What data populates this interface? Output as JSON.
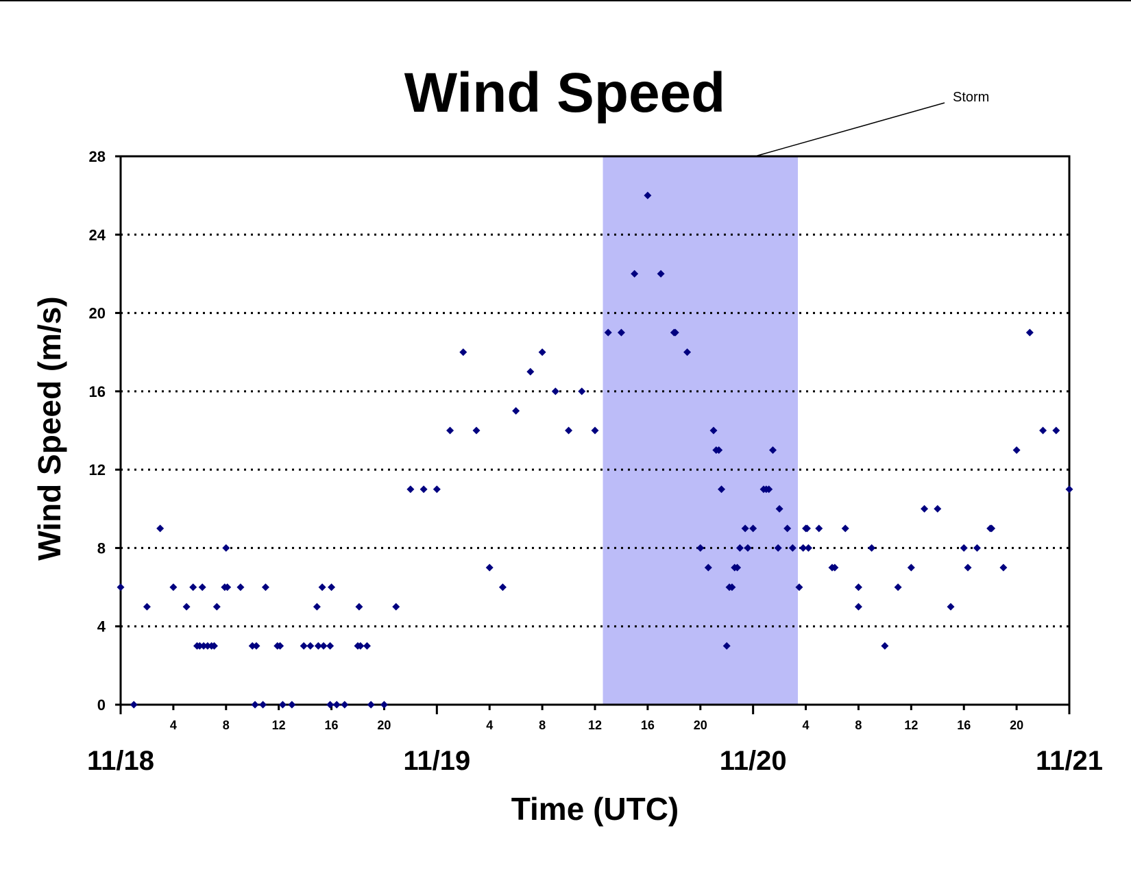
{
  "chart_data": {
    "type": "scatter",
    "title": "Wind Speed",
    "xlabel": "Time (UTC)",
    "ylabel": "Wind Speed (m/s)",
    "x_unit": "hours since 11/18 00 UTC",
    "xlim": [
      0,
      72
    ],
    "ylim": [
      0,
      28
    ],
    "yticks": [
      "0",
      "4",
      "8",
      "12",
      "16",
      "20",
      "24",
      "28"
    ],
    "hour_tick_labels": [
      "4",
      "8",
      "12",
      "16",
      "20"
    ],
    "day_labels": [
      "11/18",
      "11/19",
      "11/20",
      "11/21"
    ],
    "grid": "horizontal dotted",
    "marker_color": "#000080",
    "shading": {
      "label": "Storm",
      "x_start": 36.6,
      "x_end": 51.4,
      "color": "#bcbcf8"
    },
    "series": [
      {
        "points": [
          [
            0,
            6
          ],
          [
            1,
            0
          ],
          [
            2,
            5
          ],
          [
            3,
            9
          ],
          [
            4,
            6
          ],
          [
            5,
            5
          ],
          [
            5.5,
            6
          ],
          [
            5.8,
            3
          ],
          [
            6.0,
            3
          ],
          [
            6.2,
            6
          ],
          [
            6.3,
            3
          ],
          [
            6.6,
            3
          ],
          [
            6.9,
            3
          ],
          [
            7.1,
            3
          ],
          [
            7.3,
            5
          ],
          [
            7.9,
            6
          ],
          [
            8.0,
            8
          ],
          [
            8.1,
            6
          ],
          [
            9.1,
            6
          ],
          [
            10,
            3
          ],
          [
            10.2,
            0
          ],
          [
            10.3,
            3
          ],
          [
            10.8,
            0
          ],
          [
            11,
            6
          ],
          [
            11.9,
            3
          ],
          [
            12.1,
            3
          ],
          [
            12.3,
            0
          ],
          [
            13.0,
            0
          ],
          [
            13.9,
            3
          ],
          [
            14.4,
            3
          ],
          [
            14.9,
            5
          ],
          [
            15.0,
            3
          ],
          [
            15.3,
            6
          ],
          [
            15.4,
            3
          ],
          [
            15.9,
            3
          ],
          [
            16.0,
            6
          ],
          [
            15.9,
            0
          ],
          [
            16.4,
            0
          ],
          [
            17.0,
            0
          ],
          [
            18.0,
            3
          ],
          [
            18.2,
            3
          ],
          [
            18.1,
            5
          ],
          [
            18.7,
            3
          ],
          [
            19.0,
            0
          ],
          [
            20.0,
            0
          ],
          [
            20.9,
            5
          ],
          [
            22.0,
            11
          ],
          [
            23.0,
            11
          ],
          [
            24.0,
            11
          ],
          [
            25.0,
            14
          ],
          [
            26.0,
            18
          ],
          [
            27.0,
            14
          ],
          [
            28.0,
            7
          ],
          [
            29.0,
            6
          ],
          [
            30.0,
            15
          ],
          [
            31.1,
            17
          ],
          [
            32.0,
            18
          ],
          [
            33.0,
            16
          ],
          [
            34.0,
            14
          ],
          [
            35.0,
            16
          ],
          [
            36.0,
            14
          ],
          [
            37.0,
            19
          ],
          [
            38.0,
            19
          ],
          [
            39.0,
            22
          ],
          [
            40.0,
            26
          ],
          [
            41.0,
            22
          ],
          [
            42.0,
            19
          ],
          [
            42.1,
            19
          ],
          [
            43.0,
            18
          ],
          [
            44.0,
            8
          ],
          [
            44.6,
            7
          ],
          [
            45.0,
            14
          ],
          [
            45.2,
            13
          ],
          [
            45.4,
            13
          ],
          [
            45.6,
            11
          ],
          [
            46.0,
            3
          ],
          [
            46.2,
            6
          ],
          [
            46.4,
            6
          ],
          [
            46.6,
            7
          ],
          [
            46.8,
            7
          ],
          [
            47.0,
            8
          ],
          [
            47.4,
            9
          ],
          [
            47.6,
            8
          ],
          [
            48.0,
            9
          ],
          [
            48.8,
            11
          ],
          [
            49.0,
            11
          ],
          [
            49.2,
            11
          ],
          [
            49.5,
            13
          ],
          [
            49.9,
            8
          ],
          [
            50.0,
            10
          ],
          [
            50.6,
            9
          ],
          [
            51.0,
            8
          ],
          [
            51.5,
            6
          ],
          [
            51.8,
            8
          ],
          [
            52.0,
            9
          ],
          [
            52.1,
            9
          ],
          [
            52.2,
            8
          ],
          [
            53.0,
            9
          ],
          [
            54.0,
            7
          ],
          [
            54.2,
            7
          ],
          [
            55.0,
            9
          ],
          [
            56.0,
            6
          ],
          [
            56.0,
            5
          ],
          [
            57.0,
            8
          ],
          [
            58.0,
            3
          ],
          [
            59.0,
            6
          ],
          [
            60.0,
            7
          ],
          [
            61.0,
            10
          ],
          [
            62.0,
            10
          ],
          [
            63.0,
            5
          ],
          [
            64.0,
            8
          ],
          [
            64.3,
            7
          ],
          [
            65.0,
            8
          ],
          [
            66.0,
            9
          ],
          [
            66.1,
            9
          ],
          [
            67.0,
            7
          ],
          [
            68.0,
            13
          ],
          [
            69.0,
            19
          ],
          [
            70.0,
            14
          ],
          [
            71.0,
            14
          ],
          [
            72.0,
            11
          ]
        ]
      }
    ]
  }
}
